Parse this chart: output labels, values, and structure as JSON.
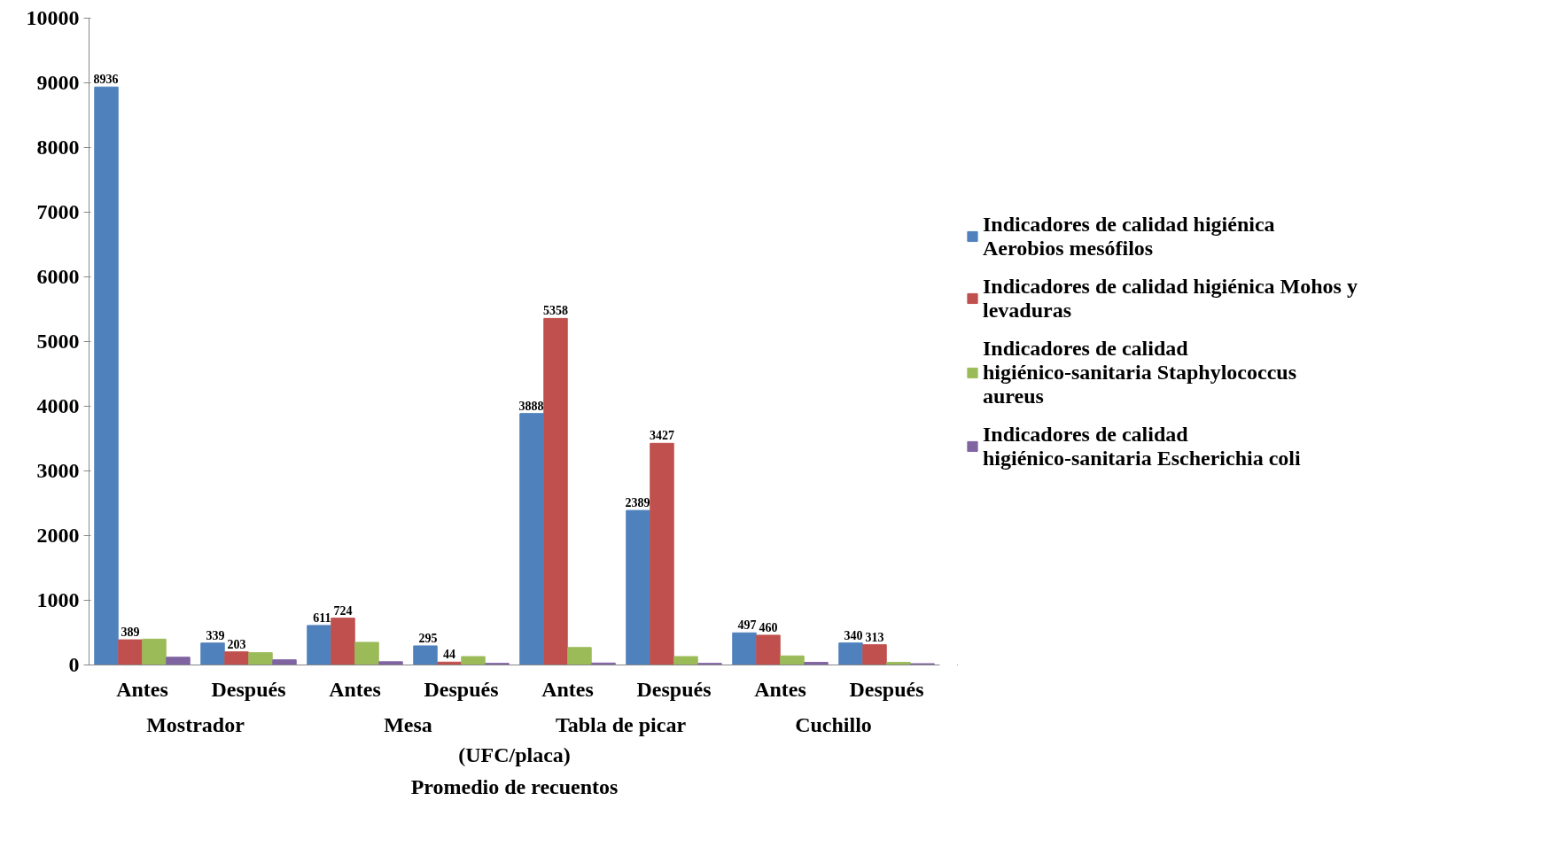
{
  "chart_data": {
    "type": "bar",
    "categories": [
      "Antes",
      "Después",
      "Antes",
      "Después",
      "Antes",
      "Después",
      "Antes",
      "Después"
    ],
    "annotations": [
      "Mostrador",
      "Mesa",
      "Tabla de picar",
      "Cuchillo",
      "Promedio de recuentos"
    ],
    "xlabel": "(UFC/placa)",
    "series": [
      {
        "name": "Indicadores de calidad higiénica Aerobios mesófilos",
        "color": "#4f81bd",
        "values": [
          8936,
          339,
          611,
          295,
          3888,
          2389,
          497,
          340
        ],
        "value_labels": [
          "8936",
          "339",
          "611",
          "295",
          "3888",
          "2389",
          "497",
          "340"
        ]
      },
      {
        "name": "Indicadores de calidad higiénica Mohos y levaduras",
        "color": "#c0504d",
        "values": [
          389,
          203,
          724,
          44,
          5358,
          3427,
          460,
          313
        ],
        "value_labels": [
          "389",
          "203",
          "724",
          "44",
          "5358",
          "3427",
          "460",
          "313"
        ]
      },
      {
        "name": "Indicadores de calidad higiénico-sanitaria Staphylococcus aureus",
        "color": "#9bbb59",
        "values": [
          400,
          190,
          350,
          130,
          270,
          130,
          140,
          40
        ]
      },
      {
        "name": "Indicadores de calidad higiénico-sanitaria Escherichia coli",
        "color": "#8064a2",
        "values": [
          120,
          80,
          50,
          25,
          30,
          25,
          40,
          20
        ]
      }
    ],
    "ylim": [
      0,
      10000
    ],
    "yticks": [
      0,
      1000,
      2000,
      3000,
      4000,
      5000,
      6000,
      7000,
      8000,
      9000,
      10000
    ],
    "grid": false,
    "legend": "right"
  }
}
